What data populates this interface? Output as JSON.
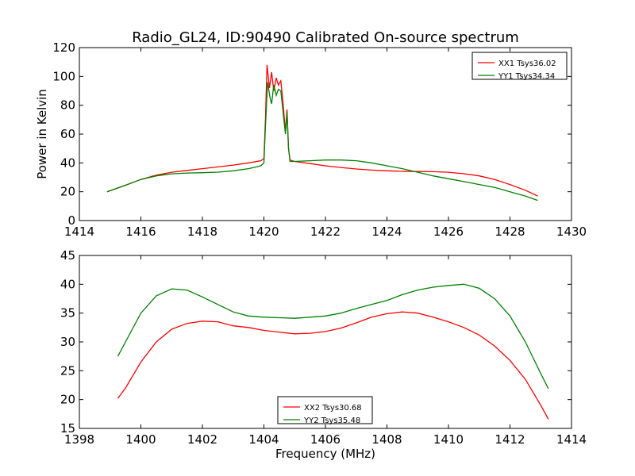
{
  "chart_data": [
    {
      "type": "line",
      "title": "Radio_GL24, ID:90490 Calibrated On-source spectrum",
      "xlabel": "",
      "ylabel": "Power in Kelvin",
      "xlim": [
        1414,
        1430
      ],
      "ylim": [
        0,
        120
      ],
      "xticks": [
        1414,
        1416,
        1418,
        1420,
        1422,
        1424,
        1426,
        1428,
        1430
      ],
      "yticks": [
        0,
        20,
        40,
        60,
        80,
        100,
        120
      ],
      "legend_position": "top-right",
      "series": [
        {
          "name": "XX1 Tsys36.02",
          "color": "#ff0000",
          "points": [
            [
              1414.9,
              20
            ],
            [
              1415.5,
              24.5
            ],
            [
              1416,
              28.5
            ],
            [
              1416.5,
              31.5
            ],
            [
              1417,
              33.5
            ],
            [
              1417.5,
              34.8
            ],
            [
              1418,
              36
            ],
            [
              1418.5,
              37.2
            ],
            [
              1419,
              38.5
            ],
            [
              1419.5,
              40
            ],
            [
              1419.9,
              41.5
            ],
            [
              1420,
              43
            ],
            [
              1420.05,
              70
            ],
            [
              1420.1,
              108
            ],
            [
              1420.18,
              92
            ],
            [
              1420.25,
              103
            ],
            [
              1420.32,
              90
            ],
            [
              1420.4,
              99
            ],
            [
              1420.47,
              94
            ],
            [
              1420.55,
              97
            ],
            [
              1420.62,
              82
            ],
            [
              1420.7,
              62
            ],
            [
              1420.75,
              77
            ],
            [
              1420.8,
              50
            ],
            [
              1420.85,
              42
            ],
            [
              1421,
              41
            ],
            [
              1421.5,
              39.5
            ],
            [
              1422,
              38
            ],
            [
              1422.5,
              36.8
            ],
            [
              1423,
              35.8
            ],
            [
              1423.5,
              35
            ],
            [
              1424,
              34.5
            ],
            [
              1424.5,
              34.2
            ],
            [
              1425,
              34
            ],
            [
              1425.5,
              33.9
            ],
            [
              1426,
              33.5
            ],
            [
              1426.5,
              32.5
            ],
            [
              1427,
              31
            ],
            [
              1427.5,
              28.5
            ],
            [
              1428,
              25
            ],
            [
              1428.5,
              21
            ],
            [
              1428.9,
              17
            ]
          ]
        },
        {
          "name": "YY1 Tsys34.34",
          "color": "#008000",
          "points": [
            [
              1414.9,
              20
            ],
            [
              1415.5,
              24.5
            ],
            [
              1416,
              28.5
            ],
            [
              1416.5,
              31
            ],
            [
              1417,
              32.4
            ],
            [
              1417.5,
              33
            ],
            [
              1418,
              33.2
            ],
            [
              1418.5,
              33.6
            ],
            [
              1419,
              34.5
            ],
            [
              1419.5,
              36
            ],
            [
              1419.9,
              38
            ],
            [
              1420,
              40
            ],
            [
              1420.05,
              65
            ],
            [
              1420.12,
              96
            ],
            [
              1420.2,
              85
            ],
            [
              1420.25,
              81
            ],
            [
              1420.32,
              94
            ],
            [
              1420.4,
              87
            ],
            [
              1420.47,
              91
            ],
            [
              1420.55,
              90
            ],
            [
              1420.62,
              76
            ],
            [
              1420.7,
              60
            ],
            [
              1420.75,
              75
            ],
            [
              1420.8,
              50
            ],
            [
              1420.85,
              41
            ],
            [
              1421,
              41
            ],
            [
              1421.5,
              41.5
            ],
            [
              1422,
              42
            ],
            [
              1422.5,
              42
            ],
            [
              1423,
              41.5
            ],
            [
              1423.5,
              40
            ],
            [
              1424,
              38
            ],
            [
              1424.5,
              36
            ],
            [
              1425,
              33.5
            ],
            [
              1425.5,
              31
            ],
            [
              1426,
              29
            ],
            [
              1426.5,
              27
            ],
            [
              1427,
              25
            ],
            [
              1427.5,
              23
            ],
            [
              1428,
              20
            ],
            [
              1428.5,
              17
            ],
            [
              1428.9,
              14
            ]
          ]
        }
      ]
    },
    {
      "type": "line",
      "title": "",
      "xlabel": "Frequency (MHz)",
      "ylabel": "",
      "xlim": [
        1398,
        1414
      ],
      "ylim": [
        15,
        45
      ],
      "xticks": [
        1398,
        1400,
        1402,
        1404,
        1406,
        1408,
        1410,
        1412,
        1414
      ],
      "yticks": [
        15,
        20,
        25,
        30,
        35,
        40,
        45
      ],
      "legend_position": "bottom-center",
      "series": [
        {
          "name": "XX2 Tsys30.68",
          "color": "#ff0000",
          "points": [
            [
              1399.25,
              20.2
            ],
            [
              1399.5,
              22
            ],
            [
              1400,
              26.5
            ],
            [
              1400.5,
              30
            ],
            [
              1401,
              32.2
            ],
            [
              1401.5,
              33.2
            ],
            [
              1402,
              33.6
            ],
            [
              1402.5,
              33.5
            ],
            [
              1403,
              32.8
            ],
            [
              1403.5,
              32.5
            ],
            [
              1404,
              32
            ],
            [
              1404.5,
              31.7
            ],
            [
              1405,
              31.4
            ],
            [
              1405.5,
              31.5
            ],
            [
              1406,
              31.8
            ],
            [
              1406.5,
              32.4
            ],
            [
              1407,
              33.3
            ],
            [
              1407.5,
              34.3
            ],
            [
              1408,
              34.9
            ],
            [
              1408.5,
              35.2
            ],
            [
              1409,
              35
            ],
            [
              1409.5,
              34.3
            ],
            [
              1410,
              33.5
            ],
            [
              1410.5,
              32.5
            ],
            [
              1411,
              31.2
            ],
            [
              1411.5,
              29.3
            ],
            [
              1412,
              26.8
            ],
            [
              1412.5,
              23.5
            ],
            [
              1413,
              19
            ],
            [
              1413.25,
              16.6
            ]
          ]
        },
        {
          "name": "YY2 Tsys35.48",
          "color": "#008000",
          "points": [
            [
              1399.25,
              27.5
            ],
            [
              1399.5,
              30
            ],
            [
              1400,
              35
            ],
            [
              1400.5,
              38
            ],
            [
              1401,
              39.2
            ],
            [
              1401.5,
              39
            ],
            [
              1402,
              37.8
            ],
            [
              1402.5,
              36.5
            ],
            [
              1403,
              35.2
            ],
            [
              1403.5,
              34.5
            ],
            [
              1404,
              34.3
            ],
            [
              1404.5,
              34.2
            ],
            [
              1405,
              34.1
            ],
            [
              1405.5,
              34.3
            ],
            [
              1406,
              34.5
            ],
            [
              1406.5,
              35
            ],
            [
              1407,
              35.8
            ],
            [
              1407.5,
              36.5
            ],
            [
              1408,
              37.2
            ],
            [
              1408.5,
              38.2
            ],
            [
              1409,
              39
            ],
            [
              1409.5,
              39.5
            ],
            [
              1410,
              39.8
            ],
            [
              1410.5,
              40
            ],
            [
              1411,
              39.3
            ],
            [
              1411.5,
              37.5
            ],
            [
              1412,
              34.5
            ],
            [
              1412.5,
              30
            ],
            [
              1413,
              24.5
            ],
            [
              1413.25,
              21.9
            ]
          ]
        }
      ]
    }
  ]
}
